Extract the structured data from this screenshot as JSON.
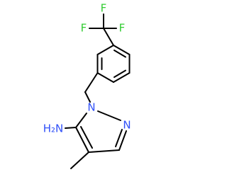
{
  "atoms": [
    {
      "label": "F"
    },
    {
      "label": "F"
    },
    {
      "label": "F"
    },
    {
      "label": "N"
    },
    {
      "label": "N"
    },
    {
      "label": "H₂N"
    }
  ]
}
